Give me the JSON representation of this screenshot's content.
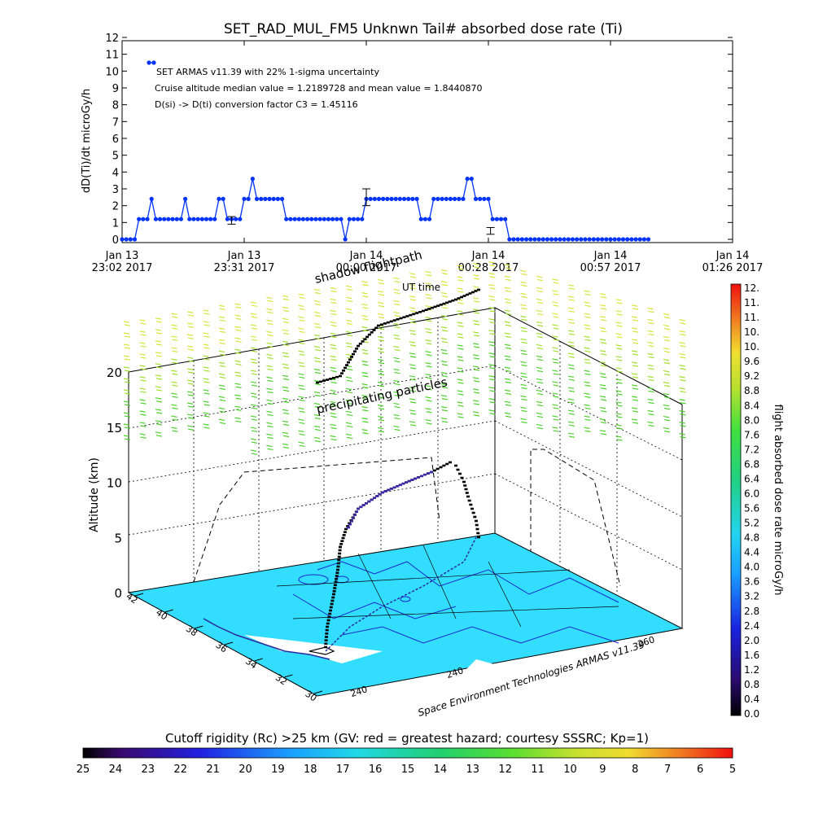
{
  "chart_data": [
    {
      "type": "line",
      "title": "SET_RAD_MUL_FM5 Unknwn Tail#  absorbed dose rate (Ti)",
      "ylabel": "dD(Ti)/dt microGy/h",
      "xlabel": "",
      "ylim": [
        0,
        12
      ],
      "y_ticks": [
        0,
        1,
        2,
        3,
        4,
        5,
        6,
        7,
        8,
        9,
        10,
        11,
        12
      ],
      "x_range_min": [
        0,
        145
      ],
      "x_ticks": [
        {
          "min": 0,
          "line1": "Jan 13",
          "line2": "23:02 2017"
        },
        {
          "min": 29,
          "line1": "Jan 13",
          "line2": "23:31 2017"
        },
        {
          "min": 58,
          "line1": "Jan 14",
          "line2": "00:00 2017"
        },
        {
          "min": 87,
          "line1": "Jan 14",
          "line2": "00:28 2017"
        },
        {
          "min": 116,
          "line1": "Jan 14",
          "line2": "00:57 2017"
        },
        {
          "min": 145,
          "line1": "Jan 14",
          "line2": "01:26 2017"
        }
      ],
      "annotations": [
        "SET ARMAS v11.39 with 22% 1-sigma uncertainty",
        "Cruise altitude median value = 1.2189728 and mean value = 1.8440870",
        "D(si) -> D(ti) conversion factor C3 = 1.45116"
      ],
      "legend_marker_value": 10.5,
      "series": [
        {
          "x": [
            0,
            1,
            2,
            3,
            4,
            5,
            6,
            7,
            8,
            9,
            10,
            11,
            12,
            13,
            14,
            15,
            16,
            17,
            18,
            19,
            20,
            21,
            22,
            23,
            24,
            25,
            26,
            27,
            28,
            29,
            30,
            31,
            32,
            33,
            34,
            35,
            36,
            37,
            38,
            39,
            40,
            41,
            42,
            43,
            44,
            45,
            46,
            47,
            48,
            49,
            50,
            51,
            52,
            53,
            54,
            55,
            56,
            57,
            58,
            59,
            60,
            61,
            62,
            63,
            64,
            65,
            66,
            67,
            68,
            69,
            70,
            71,
            72,
            73,
            74,
            75,
            76,
            77,
            78,
            79,
            80,
            81,
            82,
            83,
            84,
            85,
            86,
            87,
            88,
            89,
            90,
            91,
            92,
            93,
            94,
            95,
            96,
            97,
            98,
            99,
            100,
            101,
            102,
            103,
            104,
            105,
            106,
            107,
            108,
            109,
            110,
            111,
            112,
            113,
            114,
            115,
            116,
            117,
            118,
            119,
            120,
            121,
            122,
            123,
            124,
            125
          ],
          "y": [
            0,
            0,
            0,
            0,
            1.2,
            1.2,
            1.2,
            2.4,
            1.2,
            1.2,
            1.2,
            1.2,
            1.2,
            1.2,
            1.2,
            2.4,
            1.2,
            1.2,
            1.2,
            1.2,
            1.2,
            1.2,
            1.2,
            2.4,
            2.4,
            1.2,
            1.2,
            1.2,
            1.2,
            2.4,
            2.4,
            3.6,
            2.4,
            2.4,
            2.4,
            2.4,
            2.4,
            2.4,
            2.4,
            1.2,
            1.2,
            1.2,
            1.2,
            1.2,
            1.2,
            1.2,
            1.2,
            1.2,
            1.2,
            1.2,
            1.2,
            1.2,
            1.2,
            0,
            1.2,
            1.2,
            1.2,
            1.2,
            2.4,
            2.4,
            2.4,
            2.4,
            2.4,
            2.4,
            2.4,
            2.4,
            2.4,
            2.4,
            2.4,
            2.4,
            2.4,
            1.2,
            1.2,
            1.2,
            2.4,
            2.4,
            2.4,
            2.4,
            2.4,
            2.4,
            2.4,
            2.4,
            3.6,
            3.6,
            2.4,
            2.4,
            2.4,
            2.4,
            1.2,
            1.2,
            1.2,
            1.2,
            0,
            0,
            0,
            0,
            0,
            0,
            0,
            0,
            0,
            0,
            0,
            0,
            0,
            0,
            0,
            0,
            0,
            0,
            0,
            0,
            0,
            0,
            0,
            0,
            0,
            0,
            0,
            0,
            0,
            0,
            0,
            0,
            0,
            0
          ]
        }
      ],
      "error_bars": [
        {
          "x": 26,
          "y": 1.1,
          "low": 0.9,
          "high": 1.35
        },
        {
          "x": 58,
          "y": 2.5,
          "low": 2.0,
          "high": 3.0
        },
        {
          "x": 87.5,
          "y": 0.5,
          "low": 0.3,
          "high": 0.7
        }
      ],
      "point_color": "#0033ff"
    },
    {
      "type": "scatter",
      "title": "",
      "zlabel": "Altitude (km)",
      "z_ticks": [
        0,
        5,
        10,
        15,
        20
      ],
      "lat_ticks": [
        30,
        32,
        34,
        36,
        38,
        40,
        42
      ],
      "lon_ticks": [
        240,
        240,
        260
      ],
      "floor_label": "Space Environment Technologies ARMAS v11.39",
      "labels": [
        "shadow flightpath",
        "UT time",
        "precipitating particles"
      ],
      "flight_color": "#000000",
      "flight_high_color": "#3a2aa8",
      "floor_color": "#33ddff",
      "precip_colors": [
        "#d8e33a",
        "#9fe02c",
        "#4cd12a"
      ]
    }
  ],
  "colorbar_right": {
    "label": "flight absorbed dose rate microGy/h",
    "ticks": [
      "12.",
      "11.",
      "11.",
      "10.",
      "10.",
      "9.6",
      "9.2",
      "8.8",
      "8.4",
      "8.0",
      "7.6",
      "7.2",
      "6.8",
      "6.4",
      "6.0",
      "5.6",
      "5.2",
      "4.8",
      "4.4",
      "4.0",
      "3.6",
      "3.2",
      "2.8",
      "2.4",
      "2.0",
      "1.6",
      "1.2",
      "0.8",
      "0.4",
      "0.0"
    ]
  },
  "colorbar_bottom": {
    "title": "Cutoff rigidity (Rc) >25 km (GV: red = greatest hazard; courtesy SSSRC; Kp=1)",
    "ticks": [
      "25",
      "24",
      "23",
      "22",
      "21",
      "20",
      "19",
      "18",
      "17",
      "16",
      "15",
      "14",
      "13",
      "12",
      "11",
      "10",
      "9",
      "8",
      "7",
      "6",
      "5"
    ]
  }
}
